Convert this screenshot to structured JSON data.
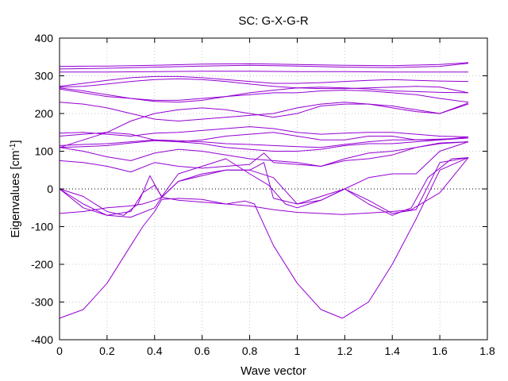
{
  "chart_data": {
    "type": "line",
    "title": "SC: G-X-G-R",
    "xlabel": "Wave vector",
    "ylabel_text": "Eigenvalues [cm",
    "ylabel_sup": "-1",
    "ylabel_close": "]",
    "xlim": [
      0,
      1.8
    ],
    "ylim": [
      -400,
      400
    ],
    "xticks": [
      0,
      0.2,
      0.4,
      0.6,
      0.8,
      1,
      1.2,
      1.4,
      1.6,
      1.8
    ],
    "xtick_labels": [
      "0",
      "0.2",
      "0.4",
      "0.6",
      "0.8",
      "1",
      "1.2",
      "1.4",
      "1.6",
      "1.8"
    ],
    "yticks": [
      -400,
      -300,
      -200,
      -100,
      0,
      100,
      200,
      300,
      400
    ],
    "ytick_labels": [
      "-400",
      "-300",
      "-200",
      "-100",
      "0",
      "100",
      "200",
      "300",
      "400"
    ],
    "grid": true,
    "zero_line": true,
    "line_color": "#9400d3",
    "series": [
      {
        "x": [
          0,
          0.1,
          0.2,
          0.3,
          0.35,
          0.4,
          0.43,
          0.5,
          0.6,
          0.7,
          0.78,
          0.82,
          0.9,
          1.0,
          1.1,
          1.19,
          1.3,
          1.4,
          1.5,
          1.6,
          1.72
        ],
        "values": [
          -343,
          -320,
          -250,
          -150,
          -100,
          -60,
          -28,
          -25,
          -28,
          -40,
          -32,
          -40,
          -150,
          -250,
          -320,
          -343,
          -300,
          -200,
          -80,
          50,
          83
        ]
      },
      {
        "x": [
          0,
          0.1,
          0.2,
          0.3,
          0.35,
          0.4,
          0.43,
          0.5,
          0.6,
          0.7,
          0.8,
          0.9,
          1.0,
          1.1,
          1.19,
          1.3,
          1.4,
          1.48,
          1.6,
          1.72
        ],
        "values": [
          -65,
          -60,
          -50,
          -45,
          -40,
          -30,
          -22,
          -30,
          -35,
          -40,
          -45,
          -55,
          -62,
          -65,
          -68,
          -64,
          -60,
          -55,
          -10,
          83
        ]
      },
      {
        "x": [
          0,
          0.1,
          0.2,
          0.3,
          0.4,
          0.43,
          0.5,
          0.6,
          0.7,
          0.8,
          0.9,
          1.0,
          1.1,
          1.2,
          1.3,
          1.4,
          1.48,
          1.55,
          1.65,
          1.72
        ],
        "values": [
          0,
          -40,
          -70,
          -75,
          -50,
          -22,
          20,
          40,
          50,
          50,
          30,
          -40,
          -30,
          0,
          -40,
          -70,
          -50,
          30,
          80,
          83
        ]
      },
      {
        "x": [
          0,
          0.1,
          0.2,
          0.27,
          0.33,
          0.38,
          0.43,
          0.5,
          0.6,
          0.7,
          0.8,
          0.86,
          0.9,
          1.0,
          1.1,
          1.2,
          1.3,
          1.4,
          1.5,
          1.6,
          1.72
        ],
        "values": [
          0,
          -20,
          -60,
          -70,
          -40,
          35,
          -22,
          20,
          35,
          50,
          50,
          70,
          -25,
          -40,
          -20,
          0,
          -30,
          -65,
          -55,
          70,
          83
        ]
      },
      {
        "x": [
          0,
          0.1,
          0.2,
          0.3,
          0.35,
          0.4,
          0.43,
          0.5,
          0.6,
          0.7,
          0.75,
          0.8,
          0.88,
          0.95,
          1.0,
          1.1,
          1.2,
          1.3,
          1.4,
          1.5,
          1.6,
          1.72
        ],
        "values": [
          0,
          -50,
          -70,
          -60,
          -10,
          10,
          -20,
          40,
          60,
          80,
          60,
          40,
          10,
          -40,
          -50,
          -30,
          0,
          30,
          40,
          40,
          100,
          125
        ]
      },
      {
        "x": [
          0,
          0.1,
          0.2,
          0.3,
          0.4,
          0.5,
          0.6,
          0.7,
          0.8,
          0.86,
          0.9,
          1.0,
          1.1,
          1.2,
          1.3,
          1.4,
          1.5,
          1.6,
          1.72
        ],
        "values": [
          75,
          70,
          60,
          45,
          70,
          60,
          55,
          60,
          65,
          95,
          70,
          65,
          60,
          75,
          80,
          90,
          110,
          122,
          125
        ]
      },
      {
        "x": [
          0,
          0.1,
          0.2,
          0.3,
          0.4,
          0.5,
          0.6,
          0.7,
          0.8,
          0.9,
          1.0,
          1.1,
          1.2,
          1.3,
          1.4,
          1.5,
          1.6,
          1.72
        ],
        "values": [
          110,
          100,
          85,
          75,
          95,
          105,
          100,
          90,
          80,
          75,
          70,
          60,
          80,
          95,
          100,
          110,
          120,
          125
        ]
      },
      {
        "x": [
          0,
          0.1,
          0.2,
          0.3,
          0.4,
          0.5,
          0.6,
          0.7,
          0.8,
          0.9,
          1.0,
          1.1,
          1.2,
          1.3,
          1.4,
          1.5,
          1.6,
          1.72
        ],
        "values": [
          110,
          112,
          115,
          122,
          128,
          125,
          120,
          110,
          105,
          100,
          100,
          105,
          115,
          120,
          120,
          125,
          130,
          135
        ]
      },
      {
        "x": [
          0,
          0.1,
          0.2,
          0.3,
          0.4,
          0.5,
          0.6,
          0.7,
          0.8,
          0.9,
          1.0,
          1.1,
          1.2,
          1.3,
          1.4,
          1.5,
          1.6,
          1.72
        ],
        "values": [
          115,
          118,
          120,
          125,
          130,
          128,
          125,
          120,
          118,
          115,
          112,
          110,
          118,
          125,
          130,
          130,
          132,
          135
        ]
      },
      {
        "x": [
          0,
          0.1,
          0.2,
          0.3,
          0.4,
          0.5,
          0.6,
          0.7,
          0.8,
          0.9,
          1.0,
          1.1,
          1.2,
          1.3,
          1.4,
          1.5,
          1.6,
          1.72
        ],
        "values": [
          140,
          145,
          150,
          145,
          130,
          125,
          130,
          140,
          145,
          150,
          140,
          130,
          130,
          140,
          140,
          130,
          130,
          138
        ]
      },
      {
        "x": [
          0,
          0.1,
          0.2,
          0.3,
          0.4,
          0.5,
          0.6,
          0.7,
          0.8,
          0.9,
          1.0,
          1.1,
          1.2,
          1.3,
          1.4,
          1.5,
          1.6,
          1.72
        ],
        "values": [
          148,
          150,
          145,
          140,
          148,
          150,
          155,
          160,
          165,
          160,
          150,
          145,
          148,
          150,
          150,
          145,
          140,
          138
        ]
      },
      {
        "x": [
          0,
          0.1,
          0.2,
          0.3,
          0.4,
          0.5,
          0.6,
          0.7,
          0.8,
          0.9,
          1.0,
          1.1,
          1.2,
          1.3,
          1.4,
          1.5,
          1.6,
          1.72
        ],
        "values": [
          110,
          130,
          150,
          180,
          200,
          210,
          215,
          210,
          200,
          190,
          200,
          220,
          225,
          225,
          220,
          210,
          200,
          225
        ]
      },
      {
        "x": [
          0,
          0.1,
          0.2,
          0.3,
          0.4,
          0.5,
          0.6,
          0.7,
          0.8,
          0.9,
          1.0,
          1.1,
          1.2,
          1.3,
          1.4,
          1.5,
          1.6,
          1.72
        ],
        "values": [
          230,
          225,
          215,
          200,
          185,
          180,
          185,
          190,
          195,
          200,
          215,
          225,
          230,
          225,
          215,
          205,
          200,
          228
        ]
      },
      {
        "x": [
          0,
          0.1,
          0.2,
          0.3,
          0.4,
          0.5,
          0.6,
          0.7,
          0.8,
          0.9,
          1.0,
          1.1,
          1.2,
          1.3,
          1.4,
          1.5,
          1.6,
          1.72
        ],
        "values": [
          265,
          255,
          245,
          240,
          235,
          235,
          240,
          245,
          250,
          255,
          255,
          260,
          262,
          260,
          255,
          250,
          240,
          230
        ]
      },
      {
        "x": [
          0,
          0.1,
          0.2,
          0.3,
          0.4,
          0.5,
          0.6,
          0.7,
          0.8,
          0.9,
          1.0,
          1.1,
          1.2,
          1.3,
          1.4,
          1.5,
          1.6,
          1.72
        ],
        "values": [
          268,
          260,
          250,
          240,
          232,
          230,
          235,
          245,
          255,
          262,
          268,
          270,
          268,
          265,
          260,
          258,
          256,
          255
        ]
      },
      {
        "x": [
          0,
          0.1,
          0.2,
          0.3,
          0.4,
          0.5,
          0.6,
          0.7,
          0.8,
          0.9,
          1.0,
          1.1,
          1.2,
          1.3,
          1.4,
          1.5,
          1.6,
          1.72
        ],
        "values": [
          270,
          272,
          278,
          285,
          290,
          292,
          290,
          285,
          278,
          272,
          268,
          266,
          266,
          268,
          270,
          272,
          270,
          255
        ]
      },
      {
        "x": [
          0,
          0.1,
          0.2,
          0.3,
          0.4,
          0.5,
          0.6,
          0.7,
          0.8,
          0.9,
          1.0,
          1.1,
          1.2,
          1.3,
          1.4,
          1.5,
          1.6,
          1.72
        ],
        "values": [
          272,
          280,
          288,
          295,
          298,
          298,
          295,
          290,
          285,
          280,
          280,
          282,
          285,
          288,
          290,
          288,
          286,
          285
        ]
      },
      {
        "x": [
          0,
          0.2,
          0.4,
          0.6,
          0.8,
          1.0,
          1.2,
          1.4,
          1.6,
          1.72
        ],
        "values": [
          310,
          310,
          311,
          312,
          312,
          311,
          311,
          310,
          310,
          310
        ]
      },
      {
        "x": [
          0,
          0.2,
          0.4,
          0.6,
          0.8,
          1.0,
          1.2,
          1.4,
          1.6,
          1.72
        ],
        "values": [
          318,
          320,
          323,
          326,
          328,
          326,
          323,
          322,
          325,
          333
        ]
      },
      {
        "x": [
          0,
          0.2,
          0.4,
          0.6,
          0.8,
          1.0,
          1.2,
          1.4,
          1.6,
          1.72
        ],
        "values": [
          325,
          326,
          328,
          331,
          332,
          330,
          328,
          327,
          330,
          335
        ]
      }
    ]
  }
}
